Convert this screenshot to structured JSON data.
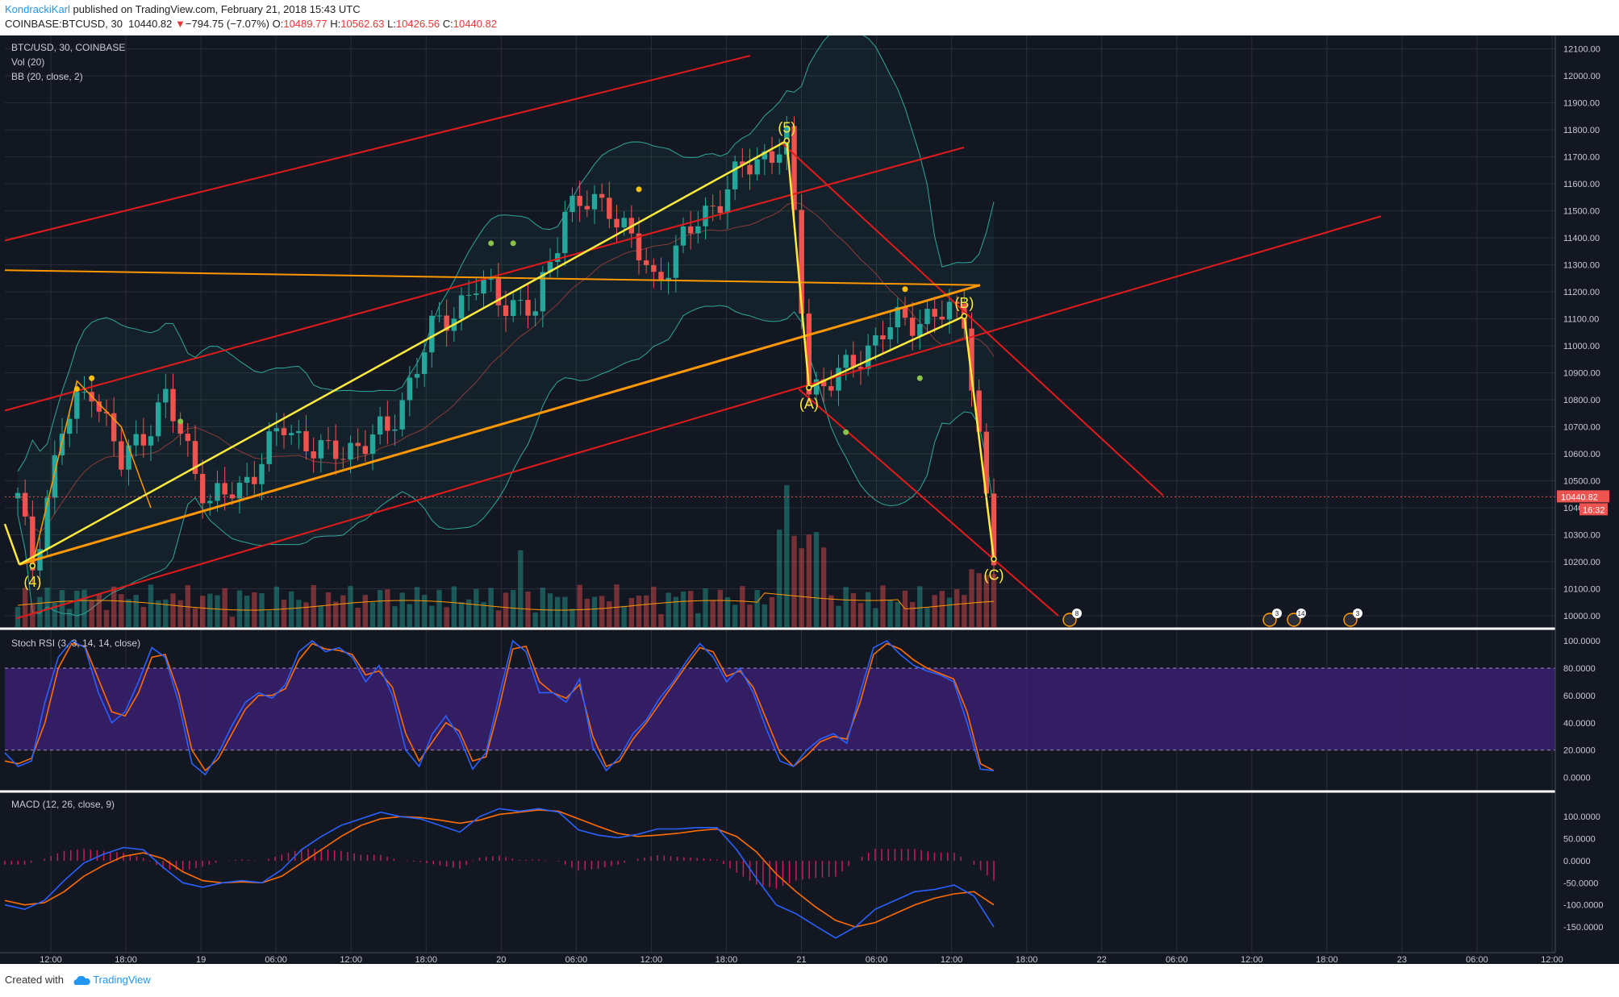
{
  "header": {
    "author": "KondrackiKarl",
    "published": " published on TradingView.com, February 21, 2018 15:43 UTC",
    "symbol": "COINBASE:BTCUSD, 30",
    "last": "10440.82",
    "down_arrow": "▼",
    "change": "−794.75 (−7.07%)",
    "o_label": "O:",
    "o_value": "10489.77",
    "h_label": "H:",
    "h_value": "10562.63",
    "l_label": "L:",
    "l_value": "10426.56",
    "c_label": "C:",
    "c_value": "10440.82"
  },
  "footer": {
    "created_with": "Created with",
    "brand": "TradingView",
    "logo_icon": "tradingview-cloud-icon"
  },
  "colors": {
    "background": "#131722",
    "grid": "#2a2e39",
    "up": "#26a69a",
    "down": "#ef5350",
    "channel_red": "#e31b1b",
    "wave_yellow": "#ffeb3b",
    "trend_orange": "#ff9800",
    "bb": "#2ea89a",
    "rsi_k": "#2962ff",
    "rsi_d": "#ff6d00",
    "rsi_band": "#3a1f6e",
    "macd": "#2962ff",
    "signal": "#ff6d00",
    "hist": "#e91e63",
    "text": "#c8cbd3"
  },
  "chart_data": [
    {
      "type": "candlestick",
      "title": "BTC/USD, 30, COINBASE",
      "indicators": [
        "Vol (20)",
        "BB (20, close, 2)"
      ],
      "x_ticks": [
        "12:00",
        "18:00",
        "19",
        "06:00",
        "12:00",
        "18:00",
        "20",
        "06:00",
        "12:00",
        "18:00",
        "21",
        "06:00",
        "12:00",
        "18:00",
        "22",
        "06:00",
        "12:00",
        "18:00",
        "23",
        "06:00",
        "12:00"
      ],
      "y_ticks": [
        "12100.00",
        "12000.00",
        "11900.00",
        "11800.00",
        "11700.00",
        "11600.00",
        "11500.00",
        "11400.00",
        "11300.00",
        "11200.00",
        "11100.00",
        "11000.00",
        "10900.00",
        "10800.00",
        "10700.00",
        "10600.00",
        "10500.00",
        "10400.00",
        "10300.00",
        "10200.00",
        "10100.00",
        "10000.00"
      ],
      "ylim": [
        9985,
        12120
      ],
      "last_price_label": "10440.82",
      "countdown_label": "16:32",
      "wave_labels": [
        "(4)",
        "(5)",
        "(A)",
        "(B)",
        "(C)"
      ],
      "wave_points": [
        {
          "label": "(4)",
          "bar": 2,
          "price": 10185
        },
        {
          "label": "(5)",
          "bar": 104,
          "price": 11760
        },
        {
          "label": "(A)",
          "bar": 107,
          "price": 10845
        },
        {
          "label": "(B)",
          "bar": 128,
          "price": 11110
        },
        {
          "label": "(C)",
          "bar": 132,
          "price": 10210
        }
      ],
      "event_badges": [
        "8",
        "3",
        "14",
        "3"
      ],
      "events_icon": "flag-event-icon",
      "bars_per_day": 48,
      "bar_count": 133
    },
    {
      "type": "line",
      "title": "Stoch RSI (3, 3, 14, 14, close)",
      "y_ticks": [
        "100.0000",
        "80.0000",
        "60.0000",
        "40.0000",
        "20.0000",
        "0.0000"
      ],
      "ylim": [
        -5,
        103
      ],
      "band": [
        20,
        80
      ],
      "series": [
        {
          "name": "K",
          "values": [
            18,
            8,
            12,
            55,
            88,
            100,
            95,
            62,
            40,
            48,
            70,
            95,
            88,
            55,
            10,
            2,
            18,
            38,
            55,
            62,
            58,
            68,
            92,
            100,
            92,
            95,
            88,
            70,
            82,
            60,
            20,
            8,
            32,
            45,
            30,
            6,
            18,
            60,
            100,
            92,
            62,
            62,
            55,
            72,
            22,
            5,
            15,
            32,
            42,
            58,
            70,
            85,
            98,
            88,
            70,
            80,
            62,
            35,
            12,
            8,
            20,
            28,
            32,
            25,
            62,
            95,
            100,
            90,
            82,
            78,
            75,
            70,
            40,
            6,
            5
          ]
        },
        {
          "name": "D",
          "values": [
            12,
            10,
            14,
            40,
            80,
            98,
            96,
            72,
            48,
            45,
            62,
            88,
            90,
            62,
            20,
            5,
            14,
            32,
            50,
            60,
            60,
            65,
            86,
            98,
            94,
            93,
            90,
            75,
            78,
            66,
            32,
            12,
            26,
            40,
            34,
            12,
            15,
            52,
            94,
            96,
            70,
            62,
            58,
            68,
            30,
            8,
            12,
            28,
            40,
            54,
            68,
            82,
            95,
            92,
            74,
            78,
            66,
            42,
            18,
            8,
            16,
            26,
            30,
            28,
            55,
            90,
            98,
            94,
            86,
            80,
            76,
            72,
            48,
            10,
            5
          ]
        }
      ]
    },
    {
      "type": "line",
      "title": "MACD (12, 26, close, 9)",
      "y_ticks": [
        "100.0000",
        "50.0000",
        "0.0000",
        "-50.0000",
        "-100.0000",
        "-150.0000"
      ],
      "ylim": [
        -190,
        135
      ],
      "series": [
        {
          "name": "MACD",
          "values": [
            -100,
            -110,
            -90,
            -45,
            -5,
            15,
            30,
            25,
            -15,
            -50,
            -60,
            -50,
            -45,
            -50,
            -20,
            25,
            55,
            80,
            95,
            110,
            100,
            95,
            80,
            65,
            100,
            118,
            112,
            118,
            110,
            70,
            58,
            52,
            60,
            72,
            72,
            75,
            75,
            25,
            -40,
            -100,
            -120,
            -148,
            -175,
            -150,
            -110,
            -90,
            -70,
            -65,
            -55,
            -80,
            -150
          ]
        },
        {
          "name": "Signal",
          "values": [
            -90,
            -100,
            -95,
            -70,
            -35,
            -10,
            10,
            18,
            5,
            -25,
            -45,
            -50,
            -48,
            -50,
            -35,
            -5,
            25,
            55,
            80,
            95,
            100,
            98,
            92,
            85,
            92,
            105,
            110,
            115,
            112,
            95,
            78,
            62,
            55,
            58,
            62,
            68,
            72,
            55,
            20,
            -30,
            -70,
            -105,
            -135,
            -150,
            -140,
            -120,
            -100,
            -85,
            -75,
            -70,
            -100
          ]
        }
      ]
    }
  ]
}
